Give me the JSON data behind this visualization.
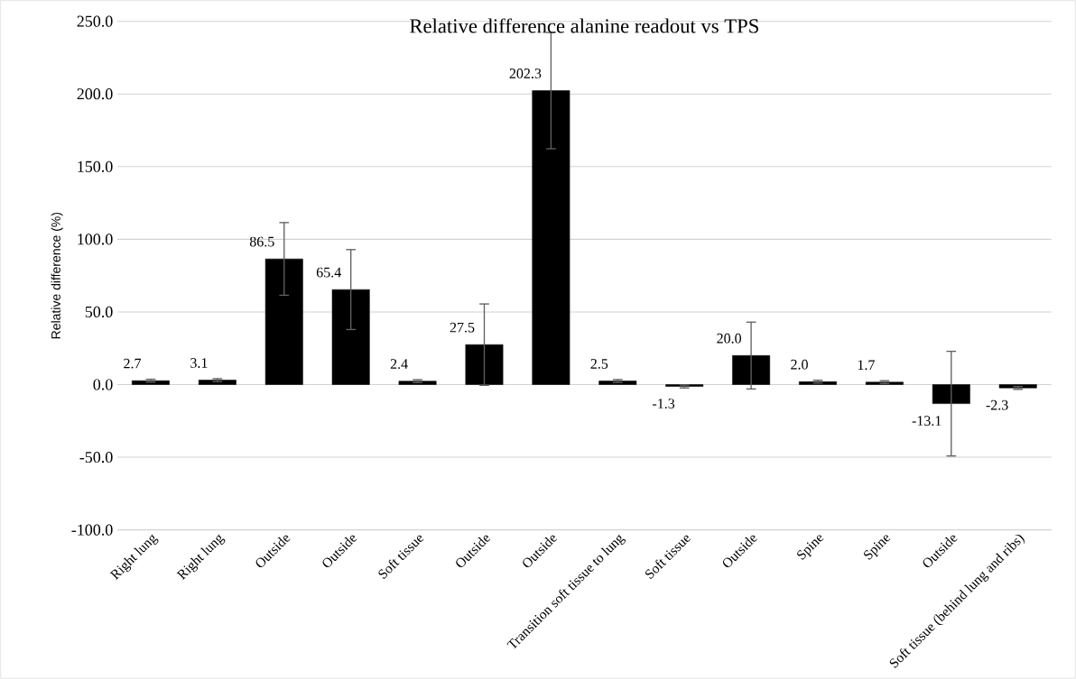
{
  "chart_data": {
    "type": "bar",
    "title": "Relative difference alanine readout vs TPS",
    "ylabel": "Relative difference (%)",
    "categories": [
      "Right lung",
      "Right lung",
      "Outside",
      "Outside",
      "Soft tissue",
      "Outside",
      "Outside",
      "Transition soft tissue to lung",
      "Soft tissue",
      "Outside",
      "Spine",
      "Spine",
      "Outside",
      "Soft tissue (behind lung and ribs)"
    ],
    "values": [
      2.7,
      3.1,
      86.5,
      65.4,
      2.4,
      27.5,
      202.3,
      2.5,
      -1.3,
      20.0,
      2.0,
      1.7,
      -13.1,
      -2.3
    ],
    "value_labels": [
      "2.7",
      "3.1",
      "86.5",
      "65.4",
      "2.4",
      "27.5",
      "202.3",
      "2.5",
      "-1.3",
      "20.0",
      "2.0",
      "1.7",
      "-13.1",
      "-2.3"
    ],
    "errors": [
      1,
      1,
      25,
      27.5,
      1,
      28,
      40,
      1,
      1,
      23,
      1,
      1,
      36,
      1
    ],
    "color": "#000000",
    "ylim": [
      -100,
      250
    ],
    "yticks": [
      {
        "value": -100,
        "label": "-100.0"
      },
      {
        "value": -50,
        "label": "-50.0"
      },
      {
        "value": 0,
        "label": "0.0"
      },
      {
        "value": 50,
        "label": "50.0"
      },
      {
        "value": 100,
        "label": "100.0"
      },
      {
        "value": 150,
        "label": "150.0"
      },
      {
        "value": 200,
        "label": "200.0"
      },
      {
        "value": 250,
        "label": "250.0"
      }
    ],
    "grid": "y"
  }
}
